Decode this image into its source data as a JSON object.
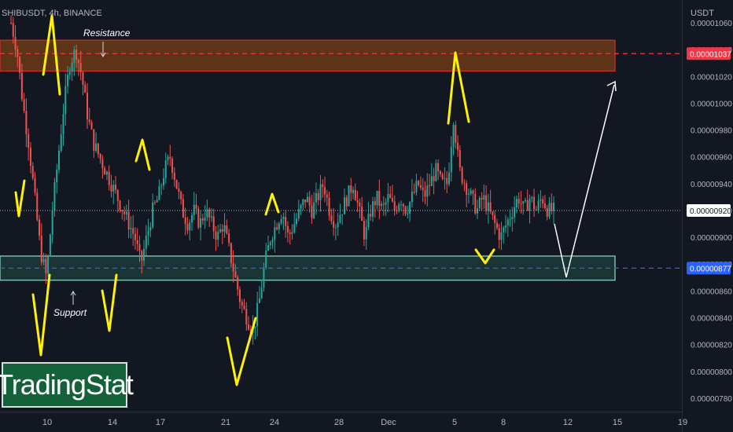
{
  "header": {
    "symbol": "SHIBUSDT, 4h, BINANCE",
    "currency": "USDT"
  },
  "logo_text": "TradingStat",
  "colors": {
    "background": "#131722",
    "candle_up": "#26a69a",
    "candle_down": "#ef5350",
    "resistance_zone": "#d12f2f",
    "support_zone": "#8fe0c8",
    "drawing": "#fff200",
    "projection": "#ffffff",
    "resistance_line": "#f23645",
    "support_line": "#2962ff"
  },
  "chart_data": {
    "type": "candlestick",
    "y_axis": {
      "ticks": [
        "0.00001060",
        "0.00001040",
        "0.00001020",
        "0.00001000",
        "0.00000980",
        "0.00000960",
        "0.00000940",
        "0.00000920",
        "0.00000900",
        "0.00000880",
        "0.00000860",
        "0.00000840",
        "0.00000820",
        "0.00000800",
        "0.00000780"
      ],
      "range": [
        7.7e-06,
        1.077e-05
      ]
    },
    "x_axis": {
      "ticks": [
        "10",
        "14",
        "17",
        "21",
        "24",
        "28",
        "Dec",
        "5",
        "8",
        "12",
        "15",
        "19"
      ]
    },
    "price_labels": {
      "resistance": "0.00001037",
      "current": "0.00000920",
      "support": "0.00000877"
    },
    "annotations": {
      "resistance": "Resistance",
      "support": "Support"
    },
    "zones": {
      "resistance": [
        1.024e-05,
        1.047e-05
      ],
      "support": [
        8.68e-06,
        8.86e-06
      ]
    },
    "closes_path": [
      1.06e-05,
      1.04e-05,
      1e-05,
      9.7e-06,
      9.3e-06,
      8.9e-06,
      8.7e-06,
      9.2e-06,
      9.6e-06,
      1e-05,
      1.03e-05,
      1.04e-05,
      1.02e-05,
      9.9e-06,
      9.7e-06,
      9.6e-06,
      9.5e-06,
      9.4e-06,
      9.3e-06,
      9.2e-06,
      9.1e-06,
      9e-06,
      8.8e-06,
      9e-06,
      9.2e-06,
      9.3e-06,
      9.5e-06,
      9.6e-06,
      9.4e-06,
      9.2e-06,
      9.1e-06,
      9.2e-06,
      9.1e-06,
      9.2e-06,
      9.1e-06,
      9e-06,
      9.1e-06,
      8.9e-06,
      8.7e-06,
      8.5e-06,
      8.4e-06,
      8.3e-06,
      8.5e-06,
      8.8e-06,
      9e-06,
      9.1e-06,
      9.2e-06,
      9e-06,
      9.1e-06,
      9.2e-06,
      9.3e-06,
      9.2e-06,
      9.3e-06,
      9.4e-06,
      9.2e-06,
      9.1e-06,
      9.2e-06,
      9.3e-06,
      9.4e-06,
      9.2e-06,
      9e-06,
      9.2e-06,
      9.3e-06,
      9.2e-06,
      9.3e-06,
      9.2e-06,
      9.3e-06,
      9.2e-06,
      9.3e-06,
      9.4e-06,
      9.3e-06,
      9.4e-06,
      9.5e-06,
      9.4e-06,
      9.4e-06,
      9.9e-06,
      9.5e-06,
      9.4e-06,
      9.3e-06,
      9.2e-06,
      9.3e-06,
      9.2e-06,
      9.1e-06,
      9e-06,
      9.1e-06,
      9.2e-06,
      9.3e-06,
      9.2e-06,
      9.3e-06,
      9.2e-06,
      9.3e-06,
      9.2e-06,
      9.2e-06
    ]
  }
}
